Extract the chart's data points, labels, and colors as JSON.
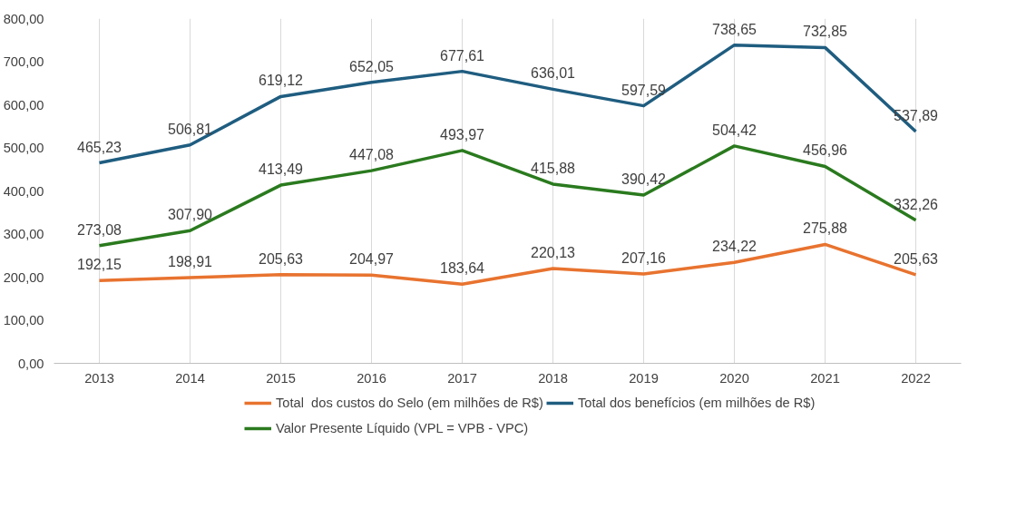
{
  "chart_data": {
    "type": "line",
    "categories": [
      "2013",
      "2014",
      "2015",
      "2016",
      "2017",
      "2018",
      "2019",
      "2020",
      "2021",
      "2022"
    ],
    "series": [
      {
        "name": "Total  dos custos do Selo (em milhões de R$)",
        "color": "#e8732f",
        "values": [
          192.15,
          198.91,
          205.63,
          204.97,
          183.64,
          220.13,
          207.16,
          234.22,
          275.88,
          205.63
        ],
        "value_labels": [
          "192,15",
          "198,91",
          "205,63",
          "204,97",
          "183,64",
          "220,13",
          "207,16",
          "234,22",
          "275,88",
          "205,63"
        ]
      },
      {
        "name": "Total dos benefícios (em milhões de R$)",
        "color": "#1f5d80",
        "values": [
          465.23,
          506.81,
          619.12,
          652.05,
          677.61,
          636.01,
          597.59,
          738.65,
          732.85,
          537.89
        ],
        "value_labels": [
          "465,23",
          "506,81",
          "619,12",
          "652,05",
          "677,61",
          "636,01",
          "597,59",
          "738,65",
          "732,85",
          "537,89"
        ]
      },
      {
        "name": "Valor Presente Líquido (VPL = VPB - VPC)",
        "color": "#2a7a1e",
        "values": [
          273.08,
          307.9,
          413.49,
          447.08,
          493.97,
          415.88,
          390.42,
          504.42,
          456.96,
          332.26
        ],
        "value_labels": [
          "273,08",
          "307,90",
          "413,49",
          "447,08",
          "493,97",
          "415,88",
          "390,42",
          "504,42",
          "456,96",
          "332,26"
        ]
      }
    ],
    "ylim": [
      0,
      800
    ],
    "yticks": [
      {
        "value": 0,
        "label": "0,00"
      },
      {
        "value": 100,
        "label": "100,00"
      },
      {
        "value": 200,
        "label": "200,00"
      },
      {
        "value": 300,
        "label": "300,00"
      },
      {
        "value": 400,
        "label": "400,00"
      },
      {
        "value": 500,
        "label": "500,00"
      },
      {
        "value": 600,
        "label": "600,00"
      },
      {
        "value": 700,
        "label": "700,00"
      },
      {
        "value": 800,
        "label": "800,00"
      }
    ],
    "grid": "x",
    "legend": "bottom",
    "marker": "none",
    "line_style": "solid"
  }
}
